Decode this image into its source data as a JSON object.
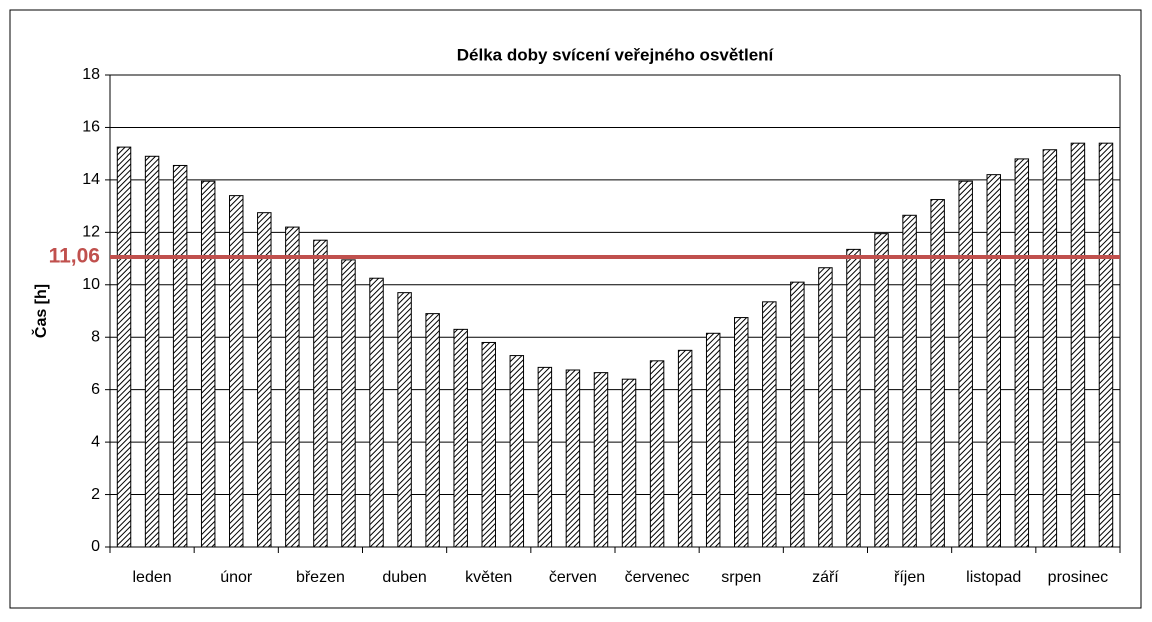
{
  "chart_data": {
    "type": "bar",
    "title": "Délka doby svícení veřejného osvětlení",
    "y_label": "Čas [h]",
    "categories": [
      null,
      "leden",
      null,
      null,
      "únor",
      null,
      null,
      "březen",
      null,
      null,
      "duben",
      null,
      null,
      "květen",
      null,
      null,
      "červen",
      null,
      null,
      "červenec",
      null,
      null,
      "srpen",
      null,
      null,
      "září",
      null,
      null,
      "říjen",
      null,
      null,
      "listopad",
      null,
      null,
      "prosinec",
      null
    ],
    "values": [
      15.25,
      14.9,
      14.55,
      13.95,
      13.4,
      12.75,
      12.2,
      11.7,
      10.95,
      10.25,
      9.7,
      8.9,
      8.3,
      7.8,
      7.3,
      6.85,
      6.75,
      6.65,
      6.4,
      7.1,
      7.5,
      8.15,
      8.75,
      9.35,
      10.1,
      10.65,
      11.35,
      11.95,
      12.65,
      13.25,
      13.95,
      14.2,
      14.8,
      15.15,
      15.4,
      15.4
    ],
    "color": "#000000",
    "ylim": [
      0,
      18
    ],
    "yticks": [
      0,
      2,
      4,
      6,
      8,
      10,
      12,
      14,
      16,
      18
    ],
    "grid": true,
    "reference_line": {
      "value": 11.06,
      "label": "11,06",
      "color": "#c0504d"
    }
  }
}
